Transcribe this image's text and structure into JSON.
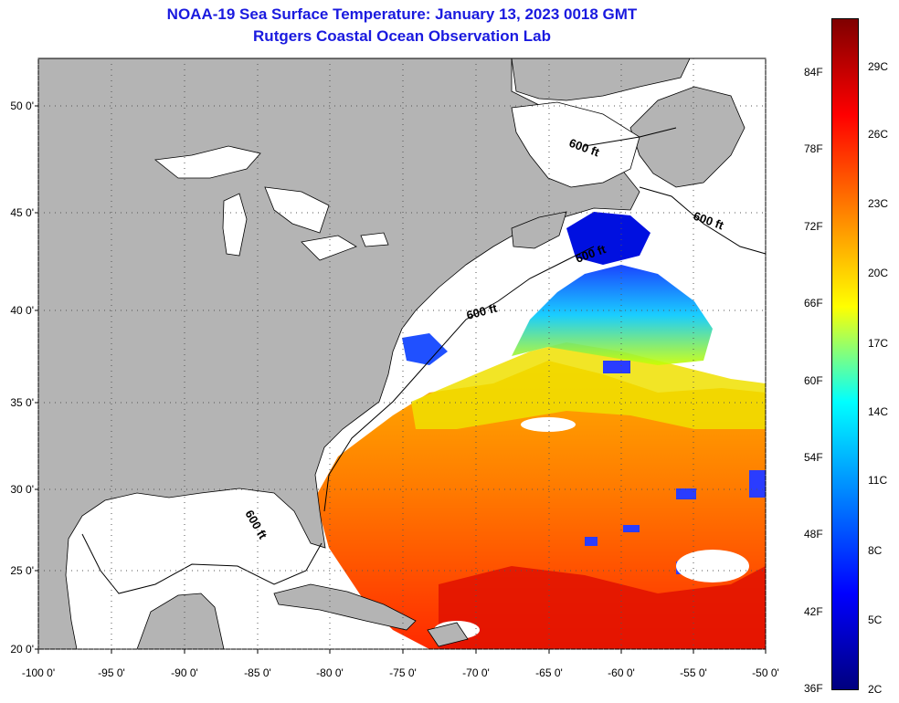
{
  "title": "NOAA-19 Sea Surface Temperature:  January 13, 2023 0018 GMT",
  "subtitle": "Rutgers Coastal Ocean Observation Lab",
  "lat_labels": [
    "50 0'",
    "45 0'",
    "40 0'",
    "35 0'",
    "30 0'",
    "25 0'",
    "20 0'"
  ],
  "lon_labels": [
    "-100 0'",
    "-95 0'",
    "-90 0'",
    "-85 0'",
    "-80 0'",
    "-75 0'",
    "-70 0'",
    "-65 0'",
    "-60 0'",
    "-55 0'",
    "-50 0'"
  ],
  "depth_contour_label": "600 ft",
  "depth_contour_labels": [
    "600 ft",
    "600 ft",
    "600 ft",
    "600 ft",
    "600 ft"
  ],
  "colorbar": {
    "fahrenheit": [
      "84F",
      "78F",
      "72F",
      "66F",
      "60F",
      "54F",
      "48F",
      "42F",
      "36F"
    ],
    "celsius": [
      "29C",
      "26C",
      "23C",
      "20C",
      "17C",
      "14C",
      "11C",
      "8C",
      "5C",
      "2C"
    ],
    "colors": [
      "#7f0000",
      "#ff0000",
      "#ff8000",
      "#ffff00",
      "#00ffff",
      "#0080ff",
      "#0000ff",
      "#00007f"
    ]
  },
  "colors": {
    "land": "#b4b4b4",
    "cloud": "#ffffff",
    "title": "#1a1adf"
  }
}
